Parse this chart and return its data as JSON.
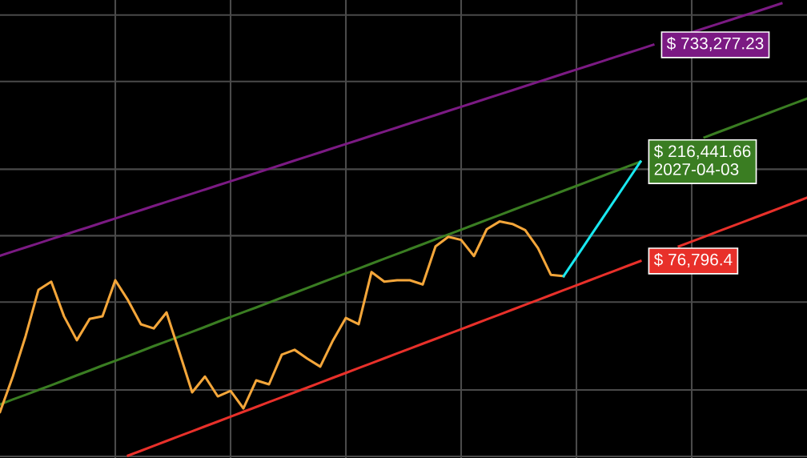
{
  "chart_data": {
    "type": "line",
    "log": "y",
    "ylim": [
      9830,
      1170000
    ],
    "grid": true,
    "legend": false,
    "tick_labels": false,
    "marker": "none",
    "line_style": "solid",
    "categories": [
      null,
      null,
      null,
      null,
      null,
      null,
      null,
      null,
      null,
      null,
      null,
      null,
      null,
      null,
      null,
      null,
      null,
      null,
      null,
      null,
      null,
      null,
      null,
      null,
      null,
      null,
      null,
      null,
      null,
      null,
      null,
      null,
      null,
      null,
      null,
      null,
      null,
      null,
      null,
      null,
      null,
      null,
      null,
      null,
      null,
      null,
      null,
      null,
      null,
      null,
      null,
      null,
      null,
      null,
      null,
      null,
      null,
      null,
      null,
      null,
      null,
      null,
      null,
      null
    ],
    "series": [
      {
        "color": "#7b1a83",
        "values": [
          81200,
          84800,
          88500,
          92400,
          96500,
          100700,
          105200,
          109800,
          114700,
          119700,
          125000,
          130500,
          136300,
          142300,
          148500,
          155100,
          161900,
          169100,
          176500,
          184300,
          192400,
          200900,
          209800,
          219000,
          228700,
          238800,
          249300,
          260300,
          271800,
          283800,
          296300,
          309300,
          323000,
          337200,
          352100,
          367600,
          383800,
          400800,
          418400,
          436900,
          456200,
          476300,
          497300,
          519200,
          542100,
          566000,
          590900,
          617000,
          644200,
          672600,
          702300,
          733277.23,
          null,
          null,
          834600,
          871400,
          909800,
          949900,
          991800,
          1035000,
          1081000,
          1129000,
          null,
          null
        ],
        "value_labels": [
          null,
          null,
          null,
          null,
          null,
          null,
          null,
          null,
          null,
          null,
          null,
          null,
          null,
          null,
          null,
          null,
          null,
          null,
          null,
          null,
          null,
          null,
          null,
          null,
          null,
          null,
          null,
          null,
          null,
          null,
          null,
          null,
          null,
          null,
          null,
          null,
          null,
          null,
          null,
          null,
          null,
          null,
          null,
          null,
          null,
          null,
          null,
          null,
          null,
          null,
          null,
          "$ 733,277.23",
          null,
          null,
          null,
          null,
          null,
          null,
          null,
          null,
          null,
          null,
          null,
          null
        ]
      },
      {
        "color": "#3a7d22",
        "values": [
          17200,
          18100,
          19000,
          20000,
          21000,
          22100,
          23300,
          24500,
          25800,
          27100,
          28500,
          30000,
          31600,
          33200,
          34900,
          36700,
          38600,
          40700,
          42800,
          45000,
          47300,
          49800,
          52400,
          55100,
          58000,
          61000,
          64200,
          67500,
          71000,
          74700,
          78600,
          82700,
          87000,
          91500,
          96300,
          101300,
          106500,
          112100,
          117900,
          124000,
          130500,
          137300,
          144400,
          151900,
          159800,
          168100,
          176900,
          186100,
          195800,
          206000,
          216441.66,
          null,
          null,
          null,
          null,
          278900,
          293400,
          308700,
          324700,
          341600,
          359400,
          378100,
          397700,
          418400
        ],
        "value_labels": [
          null,
          null,
          null,
          null,
          null,
          null,
          null,
          null,
          null,
          null,
          null,
          null,
          null,
          null,
          null,
          null,
          null,
          null,
          null,
          null,
          null,
          null,
          null,
          null,
          null,
          null,
          null,
          null,
          null,
          null,
          null,
          null,
          null,
          null,
          null,
          null,
          null,
          null,
          null,
          null,
          null,
          null,
          null,
          null,
          null,
          null,
          null,
          null,
          null,
          null,
          "$ 216,441.66\n2027-04-03",
          null,
          null,
          null,
          null,
          null,
          null,
          null,
          null,
          null,
          null,
          null,
          null,
          null
        ]
      },
      {
        "color": "#e8302a",
        "values": [
          null,
          null,
          null,
          null,
          null,
          null,
          null,
          null,
          null,
          null,
          10080,
          10600,
          11160,
          11740,
          12350,
          12990,
          13670,
          14380,
          15130,
          15920,
          16740,
          17620,
          18530,
          19500,
          20510,
          21580,
          22710,
          23890,
          25130,
          26440,
          27820,
          29270,
          30790,
          32390,
          34080,
          35860,
          37720,
          39690,
          41760,
          43930,
          46220,
          48630,
          51160,
          53830,
          56630,
          59580,
          62680,
          65950,
          69380,
          72990,
          76796.4,
          null,
          null,
          89440,
          94100,
          99000,
          104200,
          109600,
          115300,
          121300,
          127600,
          134300,
          141300,
          148600
        ],
        "value_labels": [
          null,
          null,
          null,
          null,
          null,
          null,
          null,
          null,
          null,
          null,
          null,
          null,
          null,
          null,
          null,
          null,
          null,
          null,
          null,
          null,
          null,
          null,
          null,
          null,
          null,
          null,
          null,
          null,
          null,
          null,
          null,
          null,
          null,
          null,
          null,
          null,
          null,
          null,
          null,
          null,
          null,
          null,
          null,
          null,
          null,
          null,
          null,
          null,
          null,
          null,
          "$ 76,796.4",
          null,
          null,
          null,
          null,
          null,
          null,
          null,
          null,
          null,
          null,
          null,
          null,
          null
        ]
      },
      {
        "color": "#f4a63a",
        "values": [
          15900,
          23000,
          35100,
          56800,
          61900,
          43100,
          33600,
          42000,
          43100,
          62800,
          50900,
          39700,
          38000,
          44900,
          29700,
          19500,
          23000,
          18700,
          19800,
          16500,
          22100,
          21200,
          28900,
          30400,
          27700,
          25500,
          33600,
          42400,
          39700,
          68400,
          61900,
          62800,
          62800,
          60100,
          89400,
          98900,
          95700,
          80900,
          107000,
          116000,
          113000,
          106000,
          87800,
          66500,
          65600,
          null,
          null,
          null,
          null,
          null,
          null,
          null,
          null,
          null,
          null,
          null,
          null,
          null,
          null,
          null,
          null,
          null,
          null,
          null
        ]
      },
      {
        "color": "#19e8f0",
        "values": [
          null,
          null,
          null,
          null,
          null,
          null,
          null,
          null,
          null,
          null,
          null,
          null,
          null,
          null,
          null,
          null,
          null,
          null,
          null,
          null,
          null,
          null,
          null,
          null,
          null,
          null,
          null,
          null,
          null,
          null,
          null,
          null,
          null,
          null,
          null,
          null,
          null,
          null,
          null,
          null,
          null,
          null,
          null,
          null,
          65600,
          80000,
          97700,
          119200,
          145400,
          177400,
          216441.66,
          null,
          null,
          null,
          null,
          null,
          null,
          null,
          null,
          null,
          null,
          null,
          null,
          null
        ]
      }
    ]
  }
}
